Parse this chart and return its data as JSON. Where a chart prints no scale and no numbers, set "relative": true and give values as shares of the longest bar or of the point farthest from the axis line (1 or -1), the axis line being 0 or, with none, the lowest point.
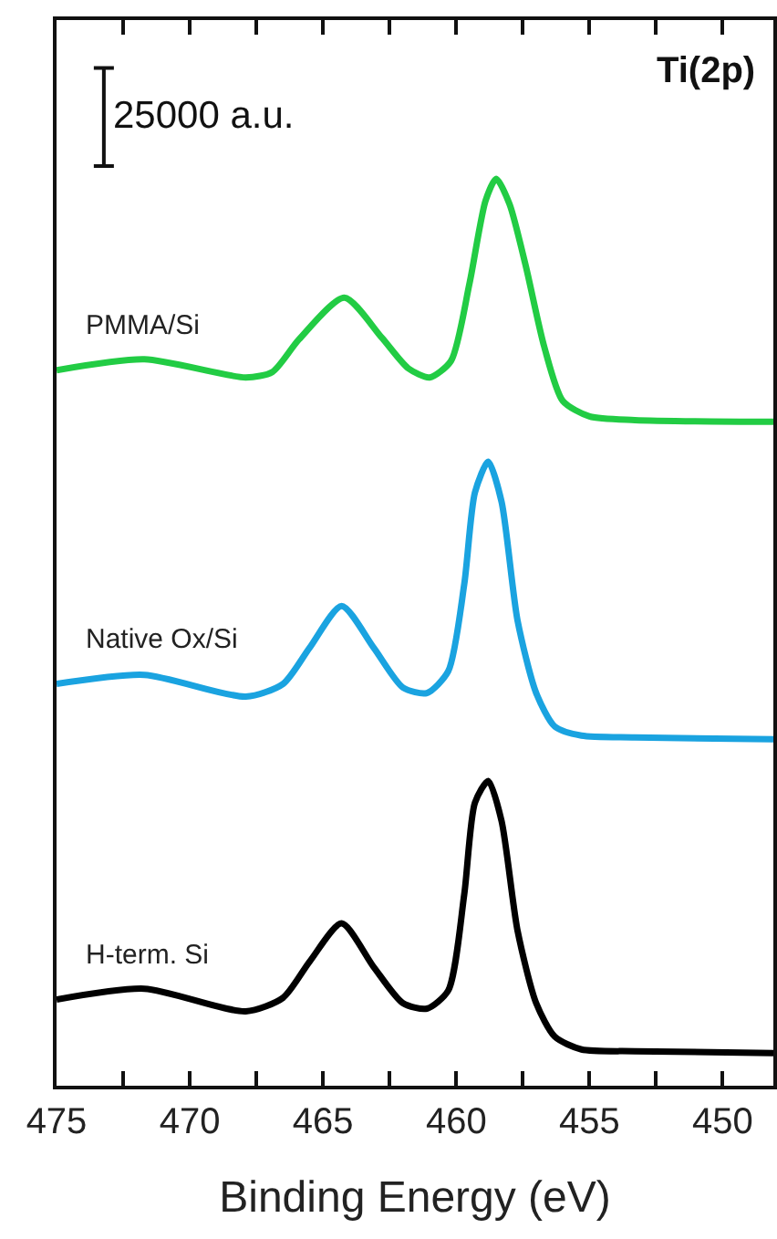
{
  "chart_data": {
    "type": "line",
    "title": "Ti(2p)",
    "xlabel": "Binding Energy (eV)",
    "relative": true,
    "legend": false,
    "grid": false,
    "tick_labels": "x",
    "line_style": "solid",
    "marker": "none",
    "annotations": [
      "25000 a.u."
    ],
    "xlim": [
      475,
      448.1
    ],
    "xticks": [
      475,
      {
        "value": 472.5,
        "label": null
      },
      470,
      {
        "value": 467.5,
        "label": null
      },
      465,
      {
        "value": 462.5,
        "label": null
      },
      460,
      {
        "value": 457.5,
        "label": null
      },
      455,
      {
        "value": 452.5,
        "label": null
      },
      450
    ],
    "series": [
      {
        "name": "PMMA/Si",
        "color": "#22cc44",
        "x": [
          475,
          471.7,
          467.9,
          466.9,
          465.9,
          464.2,
          462.8,
          461.8,
          461.0,
          460.2,
          459.5,
          458.9,
          458.5,
          458.0,
          457.4,
          456.7,
          456.0,
          455.0,
          453.3,
          448.1
        ],
        "values": [
          0.789,
          0.801,
          0.781,
          0.787,
          0.823,
          0.869,
          0.825,
          0.791,
          0.781,
          0.799,
          0.885,
          0.976,
          1.0,
          0.972,
          0.905,
          0.815,
          0.755,
          0.738,
          0.734,
          0.732
        ]
      },
      {
        "name": "Native Ox/Si",
        "color": "#1aa3e0",
        "x": [
          475,
          471.7,
          467.9,
          466.5,
          465.5,
          464.3,
          463.1,
          462.0,
          461.1,
          460.3,
          459.7,
          459.3,
          458.8,
          458.3,
          457.7,
          457.0,
          456.3,
          455.3,
          453.3,
          448.1
        ],
        "values": [
          0.443,
          0.453,
          0.429,
          0.443,
          0.483,
          0.529,
          0.483,
          0.439,
          0.433,
          0.457,
          0.553,
          0.654,
          0.688,
          0.644,
          0.513,
          0.433,
          0.396,
          0.386,
          0.384,
          0.382
        ]
      },
      {
        "name": "H-term. Si",
        "color": "#000000",
        "x": [
          475,
          471.7,
          467.9,
          466.5,
          465.5,
          464.3,
          463.1,
          462.0,
          461.1,
          460.3,
          459.7,
          459.3,
          458.8,
          458.3,
          457.7,
          457.0,
          456.3,
          455.3,
          453.3,
          448.1
        ],
        "values": [
          0.095,
          0.107,
          0.082,
          0.097,
          0.137,
          0.179,
          0.131,
          0.091,
          0.085,
          0.105,
          0.211,
          0.312,
          0.336,
          0.292,
          0.171,
          0.091,
          0.054,
          0.04,
          0.038,
          0.036
        ]
      }
    ]
  }
}
